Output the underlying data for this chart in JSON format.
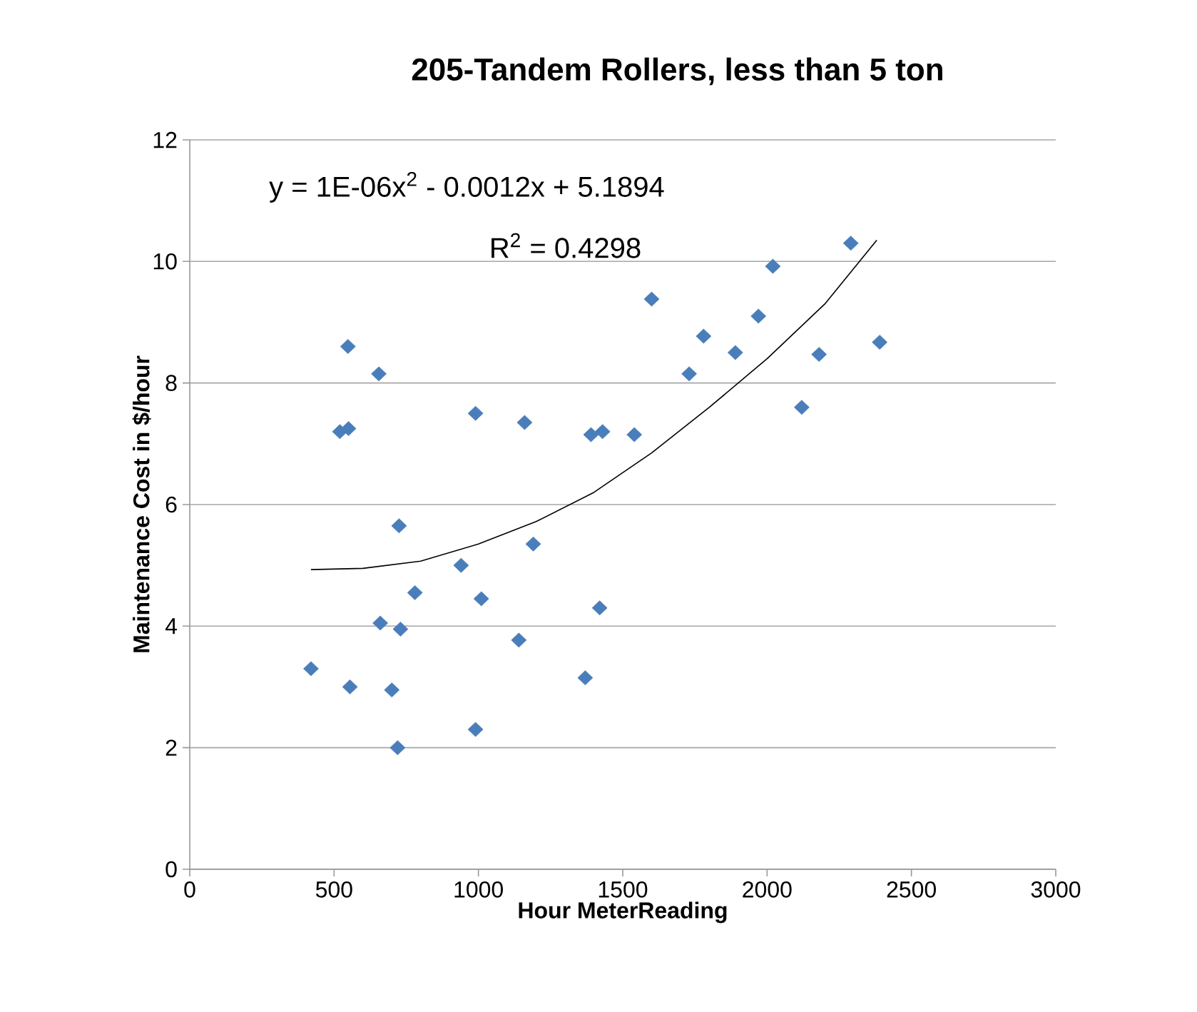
{
  "chart_data": {
    "type": "scatter",
    "title": "205-Tandem Rollers, less than 5 ton",
    "xlabel": "Hour MeterReading",
    "ylabel": "Maintenance Cost in $/hour",
    "annotations": [
      "y = 1E-06x$^{2}$ - 0.0012x + 5.1894",
      "R$^{2}$ = 0.4298"
    ],
    "xlim": [
      0,
      3000
    ],
    "xticks": [
      0,
      500,
      1000,
      1500,
      2000,
      2500,
      3000
    ],
    "ylim": [
      0,
      12
    ],
    "yticks": [
      0,
      2,
      4,
      6,
      8,
      10,
      12
    ],
    "grid": "y",
    "marker": "diamond",
    "series": [
      {
        "color": "#4a7ebb",
        "x": [
          420,
          520,
          548,
          550,
          555,
          655,
          660,
          700,
          720,
          725,
          730,
          780,
          940,
          990,
          990,
          1010,
          1140,
          1160,
          1190,
          1370,
          1390,
          1430,
          1420,
          1540,
          1600,
          1730,
          1780,
          1890,
          1970,
          2020,
          2120,
          2180,
          2290,
          2390
        ],
        "values": [
          3.3,
          7.2,
          8.6,
          7.25,
          3.0,
          8.15,
          4.05,
          2.95,
          2.0,
          5.65,
          3.95,
          4.55,
          5.0,
          7.5,
          2.3,
          4.45,
          3.77,
          7.35,
          5.35,
          3.15,
          7.15,
          7.2,
          4.3,
          7.15,
          9.38,
          8.15,
          8.77,
          8.5,
          9.1,
          9.92,
          7.6,
          8.47,
          10.3,
          8.67
        ]
      },
      {
        "type": "line",
        "color": "#000000",
        "marker": "none",
        "line_style": "solid",
        "x": [
          420,
          600,
          800,
          1000,
          1200,
          1400,
          1600,
          1800,
          2000,
          2200,
          2380
        ],
        "values": [
          4.93,
          4.95,
          5.07,
          5.35,
          5.72,
          6.2,
          6.85,
          7.6,
          8.4,
          9.3,
          10.35
        ]
      }
    ]
  }
}
